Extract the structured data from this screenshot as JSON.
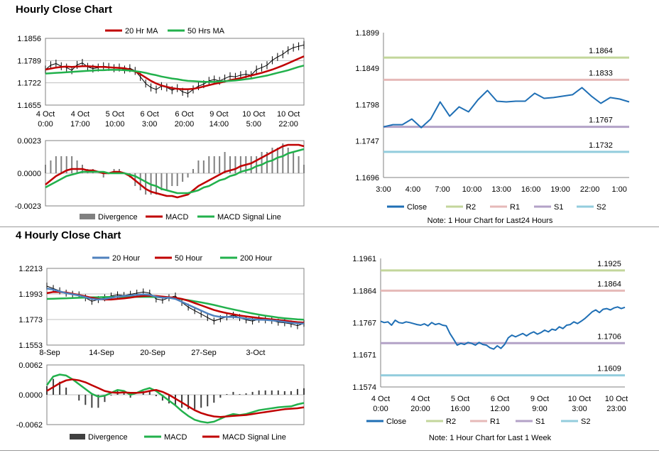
{
  "sections": {
    "hourly_title": "Hourly Close Chart",
    "four_hourly_title": "4 Hourly Close Chart"
  },
  "colors": {
    "ma_short": "#c00000",
    "ma_mid": "#c00000",
    "ma_long": "#22b14c",
    "blue": "#4f81bd",
    "close": "#1f6fb5",
    "r2": "#c3d69b",
    "r1": "#e6b9b8",
    "s1": "#b3a2c7",
    "s2": "#93cddd",
    "macd_red": "#c00000",
    "macd_green": "#22b14c",
    "divergence": "#808080"
  },
  "chart_data": [
    {
      "id": "hourly-price",
      "type": "line",
      "legend": [
        "20 Hr MA",
        "50 Hrs MA"
      ],
      "yticks": [
        "1.1856",
        "1.1789",
        "1.1722",
        "1.1655"
      ],
      "ylim": [
        1.1655,
        1.1856
      ],
      "xticks": [
        [
          "4 Oct",
          "0:00"
        ],
        [
          "4 Oct",
          "17:00"
        ],
        [
          "5 Oct",
          "10:00"
        ],
        [
          "6 Oct",
          "3:00"
        ],
        [
          "6 Oct",
          "20:00"
        ],
        [
          "9 Oct",
          "14:00"
        ],
        [
          "10 Oct",
          "5:00"
        ],
        [
          "10 Oct",
          "22:00"
        ]
      ],
      "price": [
        1.1762,
        1.1775,
        1.178,
        1.1772,
        1.1768,
        1.176,
        1.1776,
        1.1782,
        1.177,
        1.1765,
        1.1768,
        1.1772,
        1.177,
        1.1766,
        1.1768,
        1.1762,
        1.1766,
        1.1758,
        1.174,
        1.172,
        1.1708,
        1.1702,
        1.1712,
        1.1708,
        1.17,
        1.1706,
        1.1695,
        1.169,
        1.1702,
        1.1712,
        1.1718,
        1.1728,
        1.1732,
        1.1728,
        1.1735,
        1.1742,
        1.174,
        1.1745,
        1.1748,
        1.1745,
        1.1762,
        1.1768,
        1.1775,
        1.179,
        1.18,
        1.1808,
        1.182,
        1.1828,
        1.1832,
        1.1836
      ],
      "ma20": [
        1.1762,
        1.1765,
        1.1768,
        1.177,
        1.1771,
        1.177,
        1.1771,
        1.1772,
        1.1772,
        1.1771,
        1.177,
        1.177,
        1.1769,
        1.1768,
        1.1767,
        1.1766,
        1.1762,
        1.1756,
        1.1748,
        1.1738,
        1.1728,
        1.172,
        1.1714,
        1.171,
        1.1706,
        1.1704,
        1.1703,
        1.1703,
        1.1704,
        1.1707,
        1.1711,
        1.1715,
        1.1719,
        1.1722,
        1.1726,
        1.173,
        1.1733,
        1.1736,
        1.174,
        1.1744,
        1.1748,
        1.1752,
        1.1757,
        1.1762,
        1.1768,
        1.1774,
        1.1781,
        1.1788,
        1.1795,
        1.1802
      ],
      "ma50": [
        1.175,
        1.1751,
        1.1752,
        1.1753,
        1.1754,
        1.1755,
        1.1756,
        1.1757,
        1.1758,
        1.1759,
        1.176,
        1.176,
        1.1761,
        1.1761,
        1.1761,
        1.176,
        1.1759,
        1.1757,
        1.1755,
        1.1752,
        1.1748,
        1.1745,
        1.1741,
        1.1738,
        1.1735,
        1.1733,
        1.173,
        1.1728,
        1.1727,
        1.1726,
        1.1725,
        1.1725,
        1.1725,
        1.1726,
        1.1727,
        1.1728,
        1.1729,
        1.1731,
        1.1733,
        1.1735,
        1.1738,
        1.1741,
        1.1744,
        1.1748,
        1.1752,
        1.1756,
        1.176,
        1.1765,
        1.177,
        1.1774
      ]
    },
    {
      "id": "hourly-macd",
      "type": "line",
      "legend": [
        "Divergence",
        "MACD",
        "MACD Signal Line"
      ],
      "yticks": [
        "0.0023",
        "0.0000",
        "-0.0023"
      ],
      "ylim": [
        -0.0023,
        0.0023
      ],
      "macd": [
        -0.0008,
        -0.0005,
        -0.0002,
        0.0,
        0.0002,
        0.0003,
        0.0003,
        0.0003,
        0.0002,
        0.0002,
        0.0001,
        0.0,
        0.0,
        0.0001,
        0.0001,
        0.0,
        -0.0002,
        -0.0005,
        -0.0008,
        -0.0011,
        -0.0013,
        -0.0014,
        -0.0015,
        -0.0016,
        -0.0016,
        -0.0017,
        -0.0016,
        -0.0015,
        -0.0012,
        -0.0009,
        -0.0007,
        -0.0005,
        -0.0003,
        -0.0001,
        0.0001,
        0.0002,
        0.0003,
        0.0005,
        0.0006,
        0.0007,
        0.0009,
        0.0011,
        0.0013,
        0.0015,
        0.0017,
        0.0019,
        0.002,
        0.002,
        0.002,
        0.0019
      ],
      "signal": [
        -0.001,
        -0.0008,
        -0.0006,
        -0.0004,
        -0.0002,
        -0.0001,
        0.0,
        0.0001,
        0.0001,
        0.0001,
        0.0001,
        0.0001,
        0.0,
        0.0,
        0.0,
        0.0,
        -0.0001,
        -0.0002,
        -0.0004,
        -0.0006,
        -0.0008,
        -0.0009,
        -0.0011,
        -0.0012,
        -0.0013,
        -0.0014,
        -0.0014,
        -0.0014,
        -0.0013,
        -0.0012,
        -0.001,
        -0.0009,
        -0.0007,
        -0.0005,
        -0.0004,
        -0.0002,
        -0.0001,
        0.0001,
        0.0002,
        0.0003,
        0.0005,
        0.0006,
        0.0008,
        0.0009,
        0.0011,
        0.0012,
        0.0014,
        0.0015,
        0.0016,
        0.0017
      ]
    },
    {
      "id": "hourly-levels",
      "type": "line",
      "yticks": [
        "1.1899",
        "1.1849",
        "1.1798",
        "1.1747",
        "1.1696"
      ],
      "ylim": [
        1.1696,
        1.1899
      ],
      "xticks": [
        "3:00",
        "4:00",
        "7:00",
        "10:00",
        "13:00",
        "16:00",
        "19:00",
        "22:00",
        "1:00"
      ],
      "close": [
        1.1767,
        1.177,
        1.177,
        1.1778,
        1.1766,
        1.1778,
        1.1802,
        1.1782,
        1.1795,
        1.1788,
        1.1805,
        1.1818,
        1.1803,
        1.1802,
        1.1803,
        1.1803,
        1.1814,
        1.1807,
        1.1808,
        1.181,
        1.1812,
        1.1822,
        1.181,
        1.18,
        1.1808,
        1.1806,
        1.1802
      ],
      "levels": [
        {
          "name": "R2",
          "value": 1.1864,
          "label": "1.1864"
        },
        {
          "name": "R1",
          "value": 1.1833,
          "label": "1.1833"
        },
        {
          "name": "S1",
          "value": 1.1767,
          "label": "1.1767"
        },
        {
          "name": "S2",
          "value": 1.1732,
          "label": "1.1732"
        }
      ],
      "legend": [
        "Close",
        "R2",
        "R1",
        "S1",
        "S2"
      ],
      "note": "Note: 1 Hour Chart for Last24 Hours"
    },
    {
      "id": "four-hourly-price",
      "type": "line",
      "legend": [
        "20 Hour",
        "50 Hour",
        "200 Hour"
      ],
      "yticks": [
        "1.2213",
        "1.1993",
        "1.1773",
        "1.1553"
      ],
      "ylim": [
        1.1553,
        1.2213
      ],
      "xticks": [
        "8-Sep",
        "14-Sep",
        "20-Sep",
        "27-Sep",
        "3-Oct"
      ],
      "price": [
        1.206,
        1.204,
        1.202,
        1.2,
        1.199,
        1.1985,
        1.196,
        1.193,
        1.1945,
        1.196,
        1.1975,
        1.1985,
        1.198,
        1.199,
        1.2,
        1.201,
        1.2,
        1.195,
        1.194,
        1.196,
        1.1975,
        1.192,
        1.188,
        1.185,
        1.182,
        1.179,
        1.176,
        1.178,
        1.1795,
        1.181,
        1.179,
        1.177,
        1.176,
        1.1775,
        1.177,
        1.1765,
        1.175,
        1.1745,
        1.1735,
        1.172,
        1.174
      ],
      "ma20": [
        1.204,
        1.203,
        1.2015,
        1.2,
        1.199,
        1.198,
        1.1965,
        1.195,
        1.1945,
        1.195,
        1.196,
        1.197,
        1.1975,
        1.198,
        1.1985,
        1.199,
        1.1985,
        1.197,
        1.196,
        1.196,
        1.195,
        1.1925,
        1.19,
        1.1875,
        1.185,
        1.1825,
        1.1805,
        1.1795,
        1.1795,
        1.1795,
        1.179,
        1.178,
        1.1775,
        1.1772,
        1.177,
        1.1765,
        1.176,
        1.1752,
        1.1745,
        1.174,
        1.1738
      ],
      "ma50": [
        1.2,
        1.201,
        1.201,
        1.2005,
        1.1995,
        1.1985,
        1.1972,
        1.196,
        1.195,
        1.1945,
        1.1945,
        1.195,
        1.1955,
        1.1962,
        1.197,
        1.1975,
        1.1978,
        1.1975,
        1.197,
        1.1965,
        1.196,
        1.195,
        1.1935,
        1.1915,
        1.1895,
        1.1875,
        1.1855,
        1.184,
        1.1828,
        1.1818,
        1.1808,
        1.18,
        1.1793,
        1.1786,
        1.178,
        1.1774,
        1.1768,
        1.1762,
        1.1756,
        1.175,
        1.1746
      ],
      "ma200": [
        1.195,
        1.1952,
        1.1954,
        1.1956,
        1.1958,
        1.196,
        1.1962,
        1.1964,
        1.1965,
        1.1966,
        1.1967,
        1.1968,
        1.1968,
        1.1968,
        1.1968,
        1.1968,
        1.1968,
        1.1966,
        1.1964,
        1.196,
        1.1955,
        1.1948,
        1.194,
        1.193,
        1.192,
        1.191,
        1.1898,
        1.1885,
        1.1872,
        1.186,
        1.1848,
        1.1836,
        1.1825,
        1.1815,
        1.1806,
        1.1798,
        1.179,
        1.1784,
        1.1779,
        1.1775,
        1.1772
      ]
    },
    {
      "id": "four-hourly-macd",
      "type": "line",
      "legend": [
        "Divergence",
        "MACD",
        "MACD Signal Line"
      ],
      "yticks": [
        "0.0062",
        "0.0000",
        "-0.0062"
      ],
      "ylim": [
        -0.0062,
        0.0062
      ],
      "macd": [
        0.002,
        0.0038,
        0.0042,
        0.004,
        0.0032,
        0.0022,
        0.0012,
        0.0002,
        -0.0004,
        -0.0002,
        0.0004,
        0.001,
        0.0008,
        0.0,
        0.0004,
        0.001,
        0.0014,
        0.0008,
        -0.0002,
        -0.0012,
        -0.0022,
        -0.0034,
        -0.0044,
        -0.0052,
        -0.0056,
        -0.0058,
        -0.0056,
        -0.005,
        -0.0044,
        -0.004,
        -0.0042,
        -0.004,
        -0.0036,
        -0.0032,
        -0.003,
        -0.0028,
        -0.0026,
        -0.0025,
        -0.0024,
        -0.002,
        -0.0017
      ],
      "signal": [
        0.0008,
        0.0016,
        0.0024,
        0.003,
        0.0032,
        0.003,
        0.0026,
        0.002,
        0.0014,
        0.0008,
        0.0005,
        0.0004,
        0.0005,
        0.0004,
        0.0004,
        0.0005,
        0.0008,
        0.001,
        0.0006,
        0.0,
        -0.0008,
        -0.0016,
        -0.0024,
        -0.0032,
        -0.0038,
        -0.0042,
        -0.0045,
        -0.0046,
        -0.0045,
        -0.0044,
        -0.0043,
        -0.0042,
        -0.004,
        -0.0038,
        -0.0036,
        -0.0034,
        -0.0032,
        -0.003,
        -0.0029,
        -0.0028,
        -0.0026
      ]
    },
    {
      "id": "four-hourly-levels",
      "type": "line",
      "yticks": [
        "1.1961",
        "1.1864",
        "1.1767",
        "1.1671",
        "1.1574"
      ],
      "ylim": [
        1.1574,
        1.1961
      ],
      "xticks": [
        [
          "4 Oct",
          "0:00"
        ],
        [
          "4 Oct",
          "20:00"
        ],
        [
          "5 Oct",
          "16:00"
        ],
        [
          "6 Oct",
          "12:00"
        ],
        [
          "9 Oct",
          "9:00"
        ],
        [
          "10 Oct",
          "3:00"
        ],
        [
          "10 Oct",
          "23:00"
        ]
      ],
      "close": [
        1.1772,
        1.1768,
        1.177,
        1.176,
        1.1775,
        1.1768,
        1.1766,
        1.177,
        1.1768,
        1.1765,
        1.1762,
        1.176,
        1.1764,
        1.1758,
        1.1768,
        1.1762,
        1.1765,
        1.176,
        1.1758,
        1.1735,
        1.1718,
        1.17,
        1.1705,
        1.1702,
        1.1708,
        1.1705,
        1.17,
        1.1708,
        1.1702,
        1.17,
        1.1692,
        1.1688,
        1.1698,
        1.169,
        1.1702,
        1.1722,
        1.173,
        1.1725,
        1.173,
        1.1735,
        1.1728,
        1.1735,
        1.174,
        1.1733,
        1.1738,
        1.1745,
        1.174,
        1.1748,
        1.1745,
        1.1755,
        1.175,
        1.176,
        1.1762,
        1.177,
        1.1765,
        1.1772,
        1.178,
        1.179,
        1.18,
        1.1806,
        1.1798,
        1.1808,
        1.181,
        1.1806,
        1.1812,
        1.1815,
        1.181,
        1.1814
      ],
      "levels": [
        {
          "name": "R2",
          "value": 1.1925,
          "label": "1.1925"
        },
        {
          "name": "R1",
          "value": 1.1864,
          "label": "1.1864"
        },
        {
          "name": "S1",
          "value": 1.1706,
          "label": "1.1706"
        },
        {
          "name": "S2",
          "value": 1.1609,
          "label": "1.1609"
        }
      ],
      "legend": [
        "Close",
        "R2",
        "R1",
        "S1",
        "S2"
      ],
      "note": "Note: 1 Hour Chart for Last 1 Week"
    }
  ]
}
